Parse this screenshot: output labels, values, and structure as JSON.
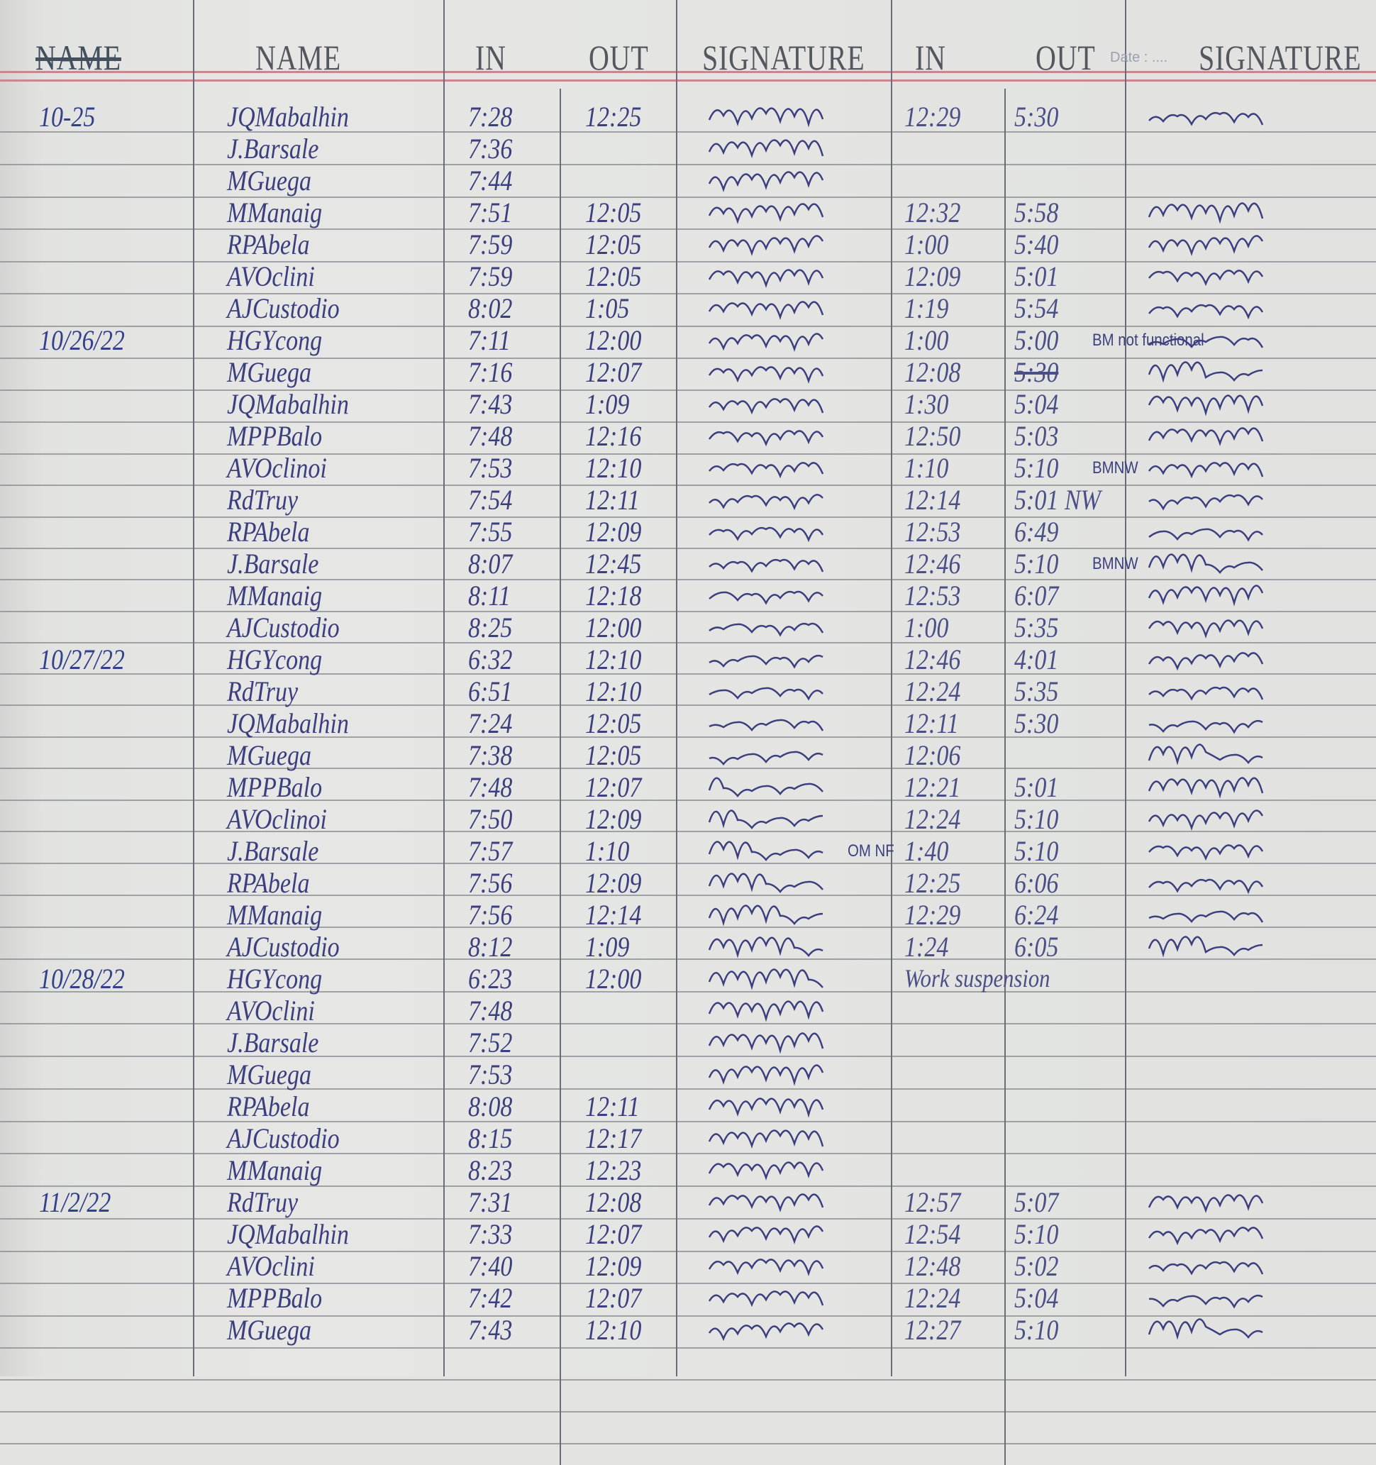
{
  "header": {
    "date_col_label": "NAME",
    "name_label": "NAME",
    "in_am_label": "IN",
    "out_am_label": "OUT",
    "signature_am_label": "SIGNATURE",
    "in_pm_label": "IN",
    "out_pm_label": "OUT",
    "date_field_label": "Date : ....",
    "signature_pm_label": "SIGNATURE"
  },
  "ink_color": "#3c3f7e",
  "groups": [
    {
      "date": "10-25",
      "rows": [
        {
          "name": "JQMabalhin",
          "in_am": "7:28",
          "out_am": "12:25",
          "in_pm": "12:29",
          "out_pm": "5:30"
        },
        {
          "name": "J.Barsale",
          "in_am": "7:36",
          "out_am": "",
          "in_pm": "",
          "out_pm": ""
        },
        {
          "name": "MGuega",
          "in_am": "7:44",
          "out_am": "",
          "in_pm": "",
          "out_pm": ""
        },
        {
          "name": "MManaig",
          "in_am": "7:51",
          "out_am": "12:05",
          "in_pm": "12:32",
          "out_pm": "5:58"
        },
        {
          "name": "RPAbela",
          "in_am": "7:59",
          "out_am": "12:05",
          "in_pm": "1:00",
          "out_pm": "5:40"
        },
        {
          "name": "AVOclini",
          "in_am": "7:59",
          "out_am": "12:05",
          "in_pm": "12:09",
          "out_pm": "5:01"
        },
        {
          "name": "AJCustodio",
          "in_am": "8:02",
          "out_am": "1:05",
          "in_pm": "1:19",
          "out_pm": "5:54"
        }
      ]
    },
    {
      "date": "10/26/22",
      "rows": [
        {
          "name": "HGYcong",
          "in_am": "7:11",
          "out_am": "12:00",
          "in_pm": "1:00",
          "out_pm": "5:00",
          "note": "BM not functional"
        },
        {
          "name": "MGuega",
          "in_am": "7:16",
          "out_am": "12:07",
          "in_pm": "12:08",
          "out_pm": "5:30",
          "out_pm_struck": true
        },
        {
          "name": "JQMabalhin",
          "in_am": "7:43",
          "out_am": "1:09",
          "in_pm": "1:30",
          "out_pm": "5:04"
        },
        {
          "name": "MPPBalo",
          "in_am": "7:48",
          "out_am": "12:16",
          "in_pm": "12:50",
          "out_pm": "5:03"
        },
        {
          "name": "AVOclinoi",
          "in_am": "7:53",
          "out_am": "12:10",
          "in_pm": "1:10",
          "out_pm": "5:10",
          "note": "BMNW"
        },
        {
          "name": "RdTruy",
          "in_am": "7:54",
          "out_am": "12:11",
          "in_pm": "12:14",
          "out_pm": "5:01 NW"
        },
        {
          "name": "RPAbela",
          "in_am": "7:55",
          "out_am": "12:09",
          "in_pm": "12:53",
          "out_pm": "6:49"
        },
        {
          "name": "J.Barsale",
          "in_am": "8:07",
          "out_am": "12:45",
          "in_pm": "12:46",
          "out_pm": "5:10",
          "note": "BMNW"
        },
        {
          "name": "MManaig",
          "in_am": "8:11",
          "out_am": "12:18",
          "in_pm": "12:53",
          "out_pm": "6:07"
        },
        {
          "name": "AJCustodio",
          "in_am": "8:25",
          "out_am": "12:00",
          "in_pm": "1:00",
          "out_pm": "5:35"
        }
      ]
    },
    {
      "date": "10/27/22",
      "rows": [
        {
          "name": "HGYcong",
          "in_am": "6:32",
          "out_am": "12:10",
          "in_pm": "12:46",
          "out_pm": "4:01"
        },
        {
          "name": "RdTruy",
          "in_am": "6:51",
          "out_am": "12:10",
          "in_pm": "12:24",
          "out_pm": "5:35"
        },
        {
          "name": "JQMabalhin",
          "in_am": "7:24",
          "out_am": "12:05",
          "in_pm": "12:11",
          "out_pm": "5:30"
        },
        {
          "name": "MGuega",
          "in_am": "7:38",
          "out_am": "12:05",
          "in_pm": "12:06",
          "out_pm": ""
        },
        {
          "name": "MPPBalo",
          "in_am": "7:48",
          "out_am": "12:07",
          "in_pm": "12:21",
          "out_pm": "5:01"
        },
        {
          "name": "AVOclinoi",
          "in_am": "7:50",
          "out_am": "12:09",
          "in_pm": "12:24",
          "out_pm": "5:10"
        },
        {
          "name": "J.Barsale",
          "in_am": "7:57",
          "out_am": "1:10",
          "in_pm": "1:40",
          "out_pm": "5:10",
          "sig_note": "OM NF"
        },
        {
          "name": "RPAbela",
          "in_am": "7:56",
          "out_am": "12:09",
          "in_pm": "12:25",
          "out_pm": "6:06"
        },
        {
          "name": "MManaig",
          "in_am": "7:56",
          "out_am": "12:14",
          "in_pm": "12:29",
          "out_pm": "6:24"
        },
        {
          "name": "AJCustodio",
          "in_am": "8:12",
          "out_am": "1:09",
          "in_pm": "1:24",
          "out_pm": "6:05"
        }
      ]
    },
    {
      "date": "10/28/22",
      "rows": [
        {
          "name": "HGYcong",
          "in_am": "6:23",
          "out_am": "12:00",
          "in_pm": "Work suspension",
          "out_pm": ""
        },
        {
          "name": "AVOclini",
          "in_am": "7:48",
          "out_am": "",
          "in_pm": "",
          "out_pm": ""
        },
        {
          "name": "J.Barsale",
          "in_am": "7:52",
          "out_am": "",
          "in_pm": "",
          "out_pm": ""
        },
        {
          "name": "MGuega",
          "in_am": "7:53",
          "out_am": "",
          "in_pm": "",
          "out_pm": ""
        },
        {
          "name": "RPAbela",
          "in_am": "8:08",
          "out_am": "12:11",
          "in_pm": "",
          "out_pm": ""
        },
        {
          "name": "AJCustodio",
          "in_am": "8:15",
          "out_am": "12:17",
          "in_pm": "",
          "out_pm": ""
        },
        {
          "name": "MManaig",
          "in_am": "8:23",
          "out_am": "12:23",
          "in_pm": "",
          "out_pm": ""
        }
      ]
    },
    {
      "date": "11/2/22",
      "rows": [
        {
          "name": "RdTruy",
          "in_am": "7:31",
          "out_am": "12:08",
          "in_pm": "12:57",
          "out_pm": "5:07"
        },
        {
          "name": "JQMabalhin",
          "in_am": "7:33",
          "out_am": "12:07",
          "in_pm": "12:54",
          "out_pm": "5:10"
        },
        {
          "name": "AVOclini",
          "in_am": "7:40",
          "out_am": "12:09",
          "in_pm": "12:48",
          "out_pm": "5:02"
        },
        {
          "name": "MPPBalo",
          "in_am": "7:42",
          "out_am": "12:07",
          "in_pm": "12:24",
          "out_pm": "5:04"
        },
        {
          "name": "MGuega",
          "in_am": "7:43",
          "out_am": "12:10",
          "in_pm": "12:27",
          "out_pm": "5:10"
        }
      ]
    }
  ]
}
